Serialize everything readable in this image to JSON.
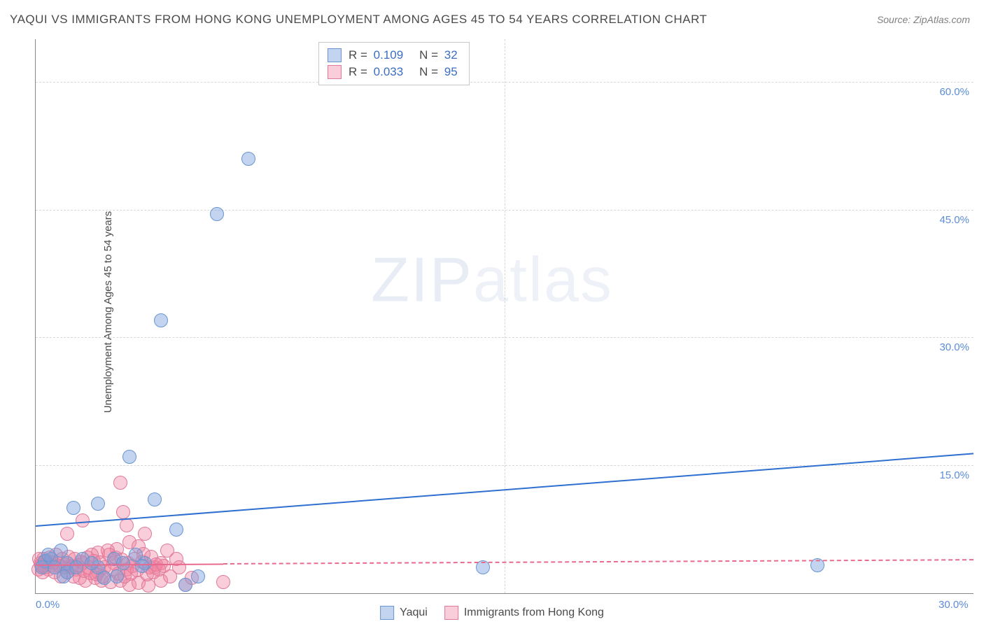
{
  "title": "YAQUI VS IMMIGRANTS FROM HONG KONG UNEMPLOYMENT AMONG AGES 45 TO 54 YEARS CORRELATION CHART",
  "source": "Source: ZipAtlas.com",
  "yAxisLabel": "Unemployment Among Ages 45 to 54 years",
  "watermark": {
    "zip": "ZIP",
    "atlas": "atlas"
  },
  "chart": {
    "type": "scatter",
    "background_color": "#ffffff",
    "grid_color": "#d8d8d8",
    "axis_color": "#888888",
    "xlim": [
      0,
      30
    ],
    "ylim": [
      0,
      65
    ],
    "x_ticks": [
      {
        "v": 0,
        "label": "0.0%"
      },
      {
        "v": 30,
        "label": "30.0%"
      }
    ],
    "y_ticks": [
      {
        "v": 15,
        "label": "15.0%"
      },
      {
        "v": 30,
        "label": "30.0%"
      },
      {
        "v": 45,
        "label": "45.0%"
      },
      {
        "v": 60,
        "label": "60.0%"
      }
    ],
    "x_gridlines": [
      15
    ],
    "y_gridlines": [
      15,
      30,
      45,
      60
    ],
    "tick_label_color": "#5b8dd6",
    "tick_fontsize": 15
  },
  "series": {
    "yaqui": {
      "label": "Yaqui",
      "R": "0.109",
      "N": "32",
      "fill": "rgba(120,160,220,0.45)",
      "stroke": "#6a95d0",
      "marker_radius": 10,
      "trend": {
        "x0": 0,
        "y0": 8.0,
        "x1": 30,
        "y1": 16.5,
        "color": "#2e6fd0",
        "width": 2,
        "dashed": false
      },
      "points": [
        [
          25.0,
          3.3
        ],
        [
          14.3,
          3.0
        ],
        [
          6.8,
          51.0
        ],
        [
          5.8,
          44.5
        ],
        [
          4.0,
          32.0
        ],
        [
          3.0,
          16.0
        ],
        [
          3.8,
          11.0
        ],
        [
          2.0,
          10.5
        ],
        [
          1.2,
          10.0
        ],
        [
          4.5,
          7.5
        ],
        [
          5.2,
          2.0
        ],
        [
          4.8,
          1.0
        ],
        [
          3.2,
          4.5
        ],
        [
          2.5,
          4.0
        ],
        [
          3.5,
          3.5
        ],
        [
          2.0,
          3.0
        ],
        [
          1.5,
          4.0
        ],
        [
          1.0,
          3.5
        ],
        [
          2.2,
          1.8
        ],
        [
          0.8,
          5.0
        ],
        [
          0.5,
          4.0
        ],
        [
          0.3,
          3.8
        ],
        [
          1.0,
          2.5
        ],
        [
          1.8,
          3.5
        ],
        [
          0.6,
          3.0
        ],
        [
          3.4,
          3.2
        ],
        [
          2.6,
          2.0
        ],
        [
          0.4,
          4.5
        ],
        [
          1.3,
          3.0
        ],
        [
          0.9,
          2.0
        ],
        [
          2.8,
          3.5
        ],
        [
          0.2,
          3.0
        ]
      ]
    },
    "hongkong": {
      "label": "Immigrants from Hong Kong",
      "R": "0.033",
      "N": "95",
      "fill": "rgba(240,130,160,0.40)",
      "stroke": "#e07a9a",
      "marker_radius": 10,
      "trend": {
        "x0": 0,
        "y0": 3.4,
        "x1": 30,
        "y1": 4.0,
        "color": "#e86a8f",
        "width": 2,
        "dashed": true
      },
      "trend_solid_until_x": 6.0,
      "points": [
        [
          6.0,
          1.3
        ],
        [
          4.8,
          1.0
        ],
        [
          5.0,
          1.8
        ],
        [
          2.7,
          13.0
        ],
        [
          2.8,
          9.5
        ],
        [
          2.9,
          8.0
        ],
        [
          3.5,
          7.0
        ],
        [
          3.0,
          6.0
        ],
        [
          1.5,
          8.5
        ],
        [
          1.0,
          7.0
        ],
        [
          4.2,
          5.0
        ],
        [
          3.3,
          5.5
        ],
        [
          3.7,
          4.3
        ],
        [
          2.6,
          5.2
        ],
        [
          2.3,
          5.0
        ],
        [
          2.0,
          4.8
        ],
        [
          1.8,
          4.5
        ],
        [
          4.5,
          4.0
        ],
        [
          4.0,
          3.5
        ],
        [
          3.8,
          3.0
        ],
        [
          3.4,
          3.7
        ],
        [
          3.1,
          3.2
        ],
        [
          2.9,
          2.8
        ],
        [
          2.5,
          3.5
        ],
        [
          2.2,
          3.0
        ],
        [
          2.0,
          2.5
        ],
        [
          1.7,
          3.0
        ],
        [
          1.5,
          3.5
        ],
        [
          1.3,
          2.8
        ],
        [
          1.1,
          3.2
        ],
        [
          0.9,
          3.0
        ],
        [
          0.7,
          3.5
        ],
        [
          0.5,
          3.3
        ],
        [
          0.3,
          3.0
        ],
        [
          0.2,
          3.2
        ],
        [
          0.4,
          2.8
        ],
        [
          0.6,
          2.5
        ],
        [
          0.8,
          2.0
        ],
        [
          1.0,
          2.5
        ],
        [
          1.2,
          2.0
        ],
        [
          1.4,
          1.8
        ],
        [
          1.6,
          1.5
        ],
        [
          1.9,
          1.8
        ],
        [
          2.1,
          1.5
        ],
        [
          2.4,
          1.3
        ],
        [
          2.7,
          1.5
        ],
        [
          3.0,
          1.0
        ],
        [
          3.3,
          1.2
        ],
        [
          3.6,
          0.9
        ],
        [
          4.0,
          1.5
        ],
        [
          0.15,
          3.5
        ],
        [
          0.25,
          4.0
        ],
        [
          0.35,
          3.8
        ],
        [
          0.45,
          4.2
        ],
        [
          0.55,
          3.6
        ],
        [
          0.65,
          4.5
        ],
        [
          0.75,
          3.2
        ],
        [
          0.85,
          4.0
        ],
        [
          0.95,
          3.4
        ],
        [
          1.05,
          4.3
        ],
        [
          1.15,
          3.0
        ],
        [
          1.25,
          4.0
        ],
        [
          1.35,
          3.3
        ],
        [
          1.45,
          3.7
        ],
        [
          1.55,
          2.6
        ],
        [
          1.65,
          4.2
        ],
        [
          1.75,
          2.4
        ],
        [
          1.85,
          3.8
        ],
        [
          1.95,
          2.2
        ],
        [
          2.05,
          3.6
        ],
        [
          2.15,
          2.0
        ],
        [
          2.35,
          4.5
        ],
        [
          2.45,
          2.8
        ],
        [
          2.55,
          4.2
        ],
        [
          2.65,
          2.3
        ],
        [
          2.75,
          3.9
        ],
        [
          2.85,
          2.0
        ],
        [
          2.95,
          3.5
        ],
        [
          3.05,
          2.3
        ],
        [
          3.15,
          4.0
        ],
        [
          3.25,
          2.7
        ],
        [
          3.45,
          4.6
        ],
        [
          3.55,
          2.2
        ],
        [
          3.65,
          3.0
        ],
        [
          3.75,
          2.5
        ],
        [
          3.85,
          3.4
        ],
        [
          3.95,
          2.8
        ],
        [
          4.1,
          3.2
        ],
        [
          4.3,
          2.0
        ],
        [
          4.6,
          3.0
        ],
        [
          0.1,
          2.8
        ],
        [
          0.12,
          4.0
        ],
        [
          0.18,
          3.3
        ],
        [
          0.22,
          2.5
        ],
        [
          0.28,
          3.7
        ]
      ]
    }
  },
  "statsLegend": {
    "rows": [
      {
        "seriesKey": "yaqui"
      },
      {
        "seriesKey": "hongkong"
      }
    ],
    "label_R": "R  =",
    "label_N": "N  ="
  },
  "bottomLegend": [
    {
      "seriesKey": "yaqui"
    },
    {
      "seriesKey": "hongkong"
    }
  ]
}
